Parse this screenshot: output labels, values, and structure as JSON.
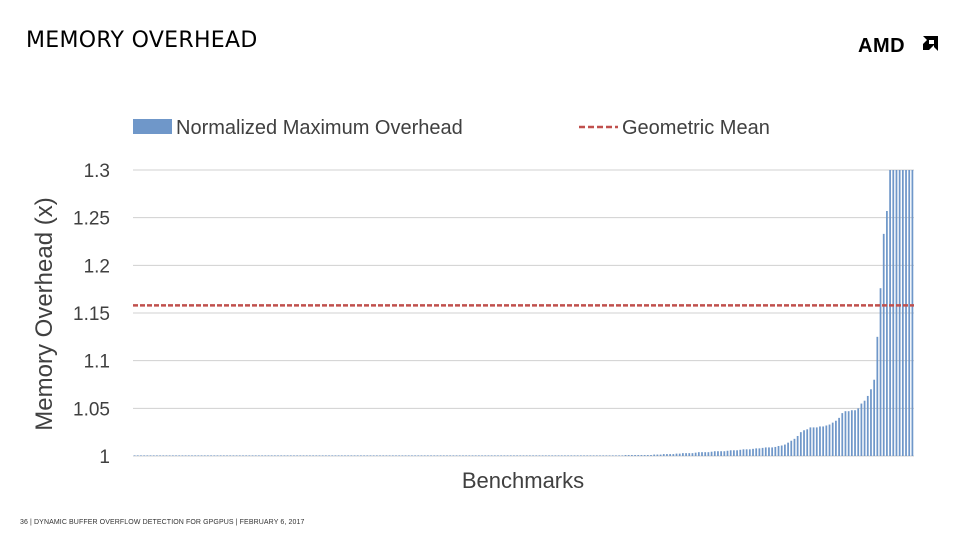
{
  "slide": {
    "title": "MEMORY OVERHEAD",
    "logo_text": "AMD",
    "footer": {
      "page_number": "36",
      "talk_title": "DYNAMIC BUFFER OVERFLOW DETECTION FOR GPGPUS",
      "date": "FEBRUARY 6, 2017",
      "separator": "|"
    }
  },
  "chart_data": {
    "type": "bar",
    "xlabel": "Benchmarks",
    "ylabel": "Memory Overhead (x)",
    "ylim": [
      1,
      1.3
    ],
    "yticks": [
      "1",
      "1.05",
      "1.1",
      "1.15",
      "1.2",
      "1.25",
      "1.3"
    ],
    "grid": true,
    "legend_position": "top",
    "series": [
      {
        "name": "Normalized Maximum Overhead",
        "color": "#6f97c9",
        "values": [
          1,
          1,
          1,
          1,
          1,
          1,
          1,
          1,
          1,
          1,
          1,
          1,
          1,
          1,
          1,
          1,
          1,
          1,
          1,
          1,
          1,
          1,
          1,
          1,
          1,
          1,
          1,
          1,
          1,
          1,
          1,
          1,
          1,
          1,
          1,
          1,
          1,
          1,
          1,
          1,
          1,
          1,
          1,
          1,
          1,
          1,
          1,
          1,
          1,
          1,
          1,
          1,
          1,
          1,
          1,
          1,
          1,
          1,
          1,
          1,
          1,
          1,
          1,
          1,
          1,
          1,
          1,
          1,
          1,
          1,
          1,
          1,
          1,
          1,
          1,
          1,
          1,
          1,
          1,
          1,
          1,
          1,
          1,
          1,
          1,
          1,
          1,
          1,
          1,
          1,
          1,
          1,
          1,
          1,
          1,
          1,
          1,
          1,
          1,
          1,
          1,
          1,
          1,
          1,
          1,
          1,
          1,
          1,
          1,
          1,
          1,
          1,
          1,
          1,
          1,
          1,
          1,
          1,
          1,
          1,
          1,
          1,
          1,
          1,
          1,
          1,
          1,
          1,
          1,
          1,
          1,
          1,
          1,
          1,
          1,
          1,
          1,
          1,
          1,
          1,
          1,
          1,
          1,
          1,
          1,
          1,
          1,
          1,
          1,
          1,
          1.0005,
          1.0005,
          1.0005,
          1.0005,
          1.001,
          1.001,
          1.001,
          1.001,
          1.001,
          1.001,
          1.001,
          1.001,
          1.001,
          1.0015,
          1.0015,
          1.0015,
          1.002,
          1.002,
          1.002,
          1.002,
          1.0025,
          1.0025,
          1.003,
          1.003,
          1.003,
          1.003,
          1.0035,
          1.004,
          1.004,
          1.004,
          1.004,
          1.0045,
          1.005,
          1.005,
          1.005,
          1.005,
          1.0055,
          1.006,
          1.006,
          1.006,
          1.0065,
          1.007,
          1.007,
          1.007,
          1.0075,
          1.008,
          1.008,
          1.0085,
          1.009,
          1.009,
          1.009,
          1.0095,
          1.0105,
          1.011,
          1.012,
          1.014,
          1.016,
          1.018,
          1.021,
          1.025,
          1.027,
          1.028,
          1.03,
          1.03,
          1.03,
          1.031,
          1.031,
          1.032,
          1.033,
          1.035,
          1.037,
          1.04,
          1.045,
          1.047,
          1.047,
          1.048,
          1.048,
          1.05,
          1.055,
          1.058,
          1.063,
          1.07,
          1.08,
          1.125,
          1.176,
          1.233,
          1.257,
          1.3,
          1.3,
          1.3,
          1.3,
          1.3,
          1.3,
          1.3,
          1.3
        ]
      },
      {
        "name": "Geometric Mean",
        "color": "#c0504d",
        "style": "dashed",
        "value": 1.158
      }
    ]
  }
}
